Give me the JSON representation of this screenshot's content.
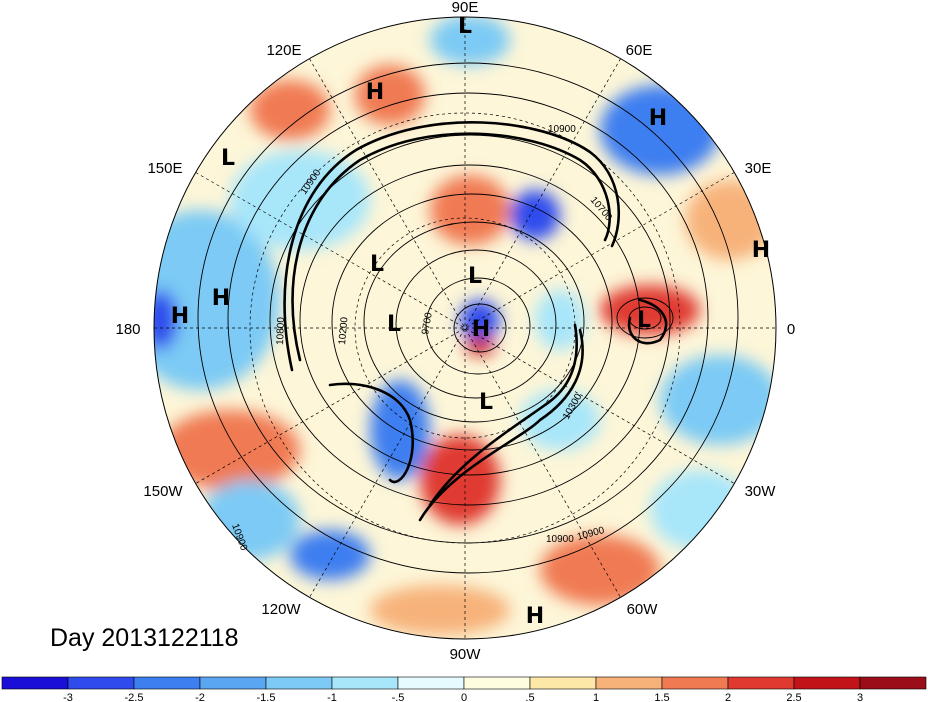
{
  "title": "Day 2013122118",
  "longitude_labels": [
    "90E",
    "120E",
    "60E",
    "150E",
    "30E",
    "180",
    "0",
    "150W",
    "30W",
    "120W",
    "60W",
    "90W"
  ],
  "pressure_centers": [
    {
      "label": "L",
      "lon": "90E"
    },
    {
      "label": "H",
      "lon": "110E"
    },
    {
      "label": "H",
      "lon": "60E"
    },
    {
      "label": "L",
      "lon": "140E"
    },
    {
      "label": "H",
      "lon": "10E"
    },
    {
      "label": "H",
      "lon": "165E"
    },
    {
      "label": "H",
      "lon": "180"
    },
    {
      "label": "L",
      "lon": "140E"
    },
    {
      "label": "L",
      "lon": "120E"
    },
    {
      "label": "L",
      "lon": "160W"
    },
    {
      "label": "H",
      "lon": "0"
    },
    {
      "label": "L",
      "lon": "0"
    },
    {
      "label": "L",
      "lon": "60W"
    },
    {
      "label": "H",
      "lon": "80W"
    }
  ],
  "contour_labels": [
    "10900",
    "10900",
    "10700",
    "10900",
    "10800",
    "10200",
    "9700",
    "10300",
    "10900",
    "10900"
  ],
  "colorbar": {
    "ticks": [
      "-3",
      "-2.5",
      "-2",
      "-1.5",
      "-1",
      "-.5",
      "0",
      ".5",
      "1",
      "1.5",
      "2",
      "2.5",
      "3"
    ],
    "colors": [
      "#1a0fd6",
      "#2f4bed",
      "#3d7ef0",
      "#5aa6f2",
      "#7ccaf5",
      "#a8e6fa",
      "#e6fbff",
      "#fffde0",
      "#fde8a8",
      "#f7b27a",
      "#f07a52",
      "#e03a30",
      "#c21418",
      "#9b0d18"
    ]
  }
}
